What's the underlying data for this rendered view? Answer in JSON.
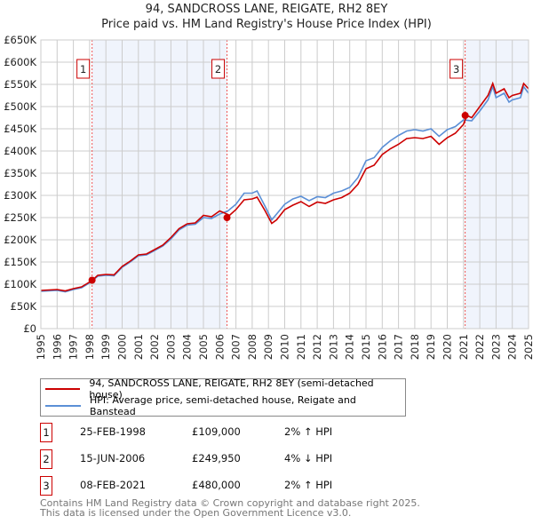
{
  "chart_data": {
    "type": "line",
    "title": "94, SANDCROSS LANE, REIGATE, RH2 8EY",
    "subtitle": "Price paid vs. HM Land Registry's House Price Index (HPI)",
    "xlim": [
      1995,
      2025
    ],
    "ylim": [
      0,
      650000
    ],
    "x_ticks": [
      "1995",
      "1996",
      "1997",
      "1998",
      "1999",
      "2000",
      "2001",
      "2002",
      "2003",
      "2004",
      "2005",
      "2006",
      "2007",
      "2008",
      "2009",
      "2010",
      "2011",
      "2012",
      "2013",
      "2014",
      "2015",
      "2016",
      "2017",
      "2018",
      "2019",
      "2020",
      "2021",
      "2022",
      "2023",
      "2024",
      "2025"
    ],
    "y_ticks": [
      "£0",
      "£50K",
      "£100K",
      "£150K",
      "£200K",
      "£250K",
      "£300K",
      "£350K",
      "£400K",
      "£450K",
      "£500K",
      "£550K",
      "£600K",
      "£650K"
    ],
    "grid": true,
    "series": [
      {
        "name": "94, SANDCROSS LANE, REIGATE, RH2 8EY (semi-detached house)",
        "color": "#cc0000",
        "x": [
          1995,
          1996,
          1996.5,
          1997,
          1997.5,
          1998,
          1998.2,
          1998.5,
          1999,
          1999.5,
          2000,
          2000.5,
          2001,
          2001.5,
          2002,
          2002.5,
          2003,
          2003.5,
          2004,
          2004.5,
          2005,
          2005.5,
          2006,
          2006.45,
          2006.6,
          2007,
          2007.5,
          2008,
          2008.3,
          2008.8,
          2009.2,
          2009.5,
          2010,
          2010.5,
          2011,
          2011.5,
          2012,
          2012.5,
          2013,
          2013.5,
          2014,
          2014.5,
          2015,
          2015.5,
          2016,
          2016.5,
          2017,
          2017.5,
          2018,
          2018.5,
          2019,
          2019.5,
          2020,
          2020.5,
          2021,
          2021.2,
          2021.5,
          2022,
          2022.5,
          2022.8,
          2023,
          2023.5,
          2023.8,
          2024,
          2024.5,
          2024.7,
          2025
        ],
        "y": [
          86,
          88,
          85,
          90,
          94,
          105,
          110,
          120,
          122,
          121,
          140,
          152,
          166,
          168,
          178,
          188,
          205,
          225,
          236,
          238,
          255,
          252,
          265,
          258,
          255,
          268,
          290,
          292,
          296,
          265,
          237,
          245,
          268,
          278,
          286,
          275,
          285,
          282,
          290,
          295,
          305,
          325,
          360,
          368,
          392,
          405,
          415,
          428,
          430,
          428,
          433,
          415,
          430,
          440,
          460,
          480,
          475,
          500,
          525,
          552,
          530,
          540,
          520,
          525,
          530,
          552,
          540
        ]
      },
      {
        "name": "HPI: Average price, semi-detached house, Reigate and Banstead",
        "color": "#5b8fd6",
        "x": [
          1995,
          1996,
          1996.5,
          1997,
          1997.5,
          1998,
          1998.5,
          1999,
          1999.5,
          2000,
          2000.5,
          2001,
          2001.5,
          2002,
          2002.5,
          2003,
          2003.5,
          2004,
          2004.5,
          2005,
          2005.5,
          2006,
          2006.5,
          2007,
          2007.5,
          2008,
          2008.3,
          2008.8,
          2009.2,
          2009.5,
          2010,
          2010.5,
          2011,
          2011.5,
          2012,
          2012.5,
          2013,
          2013.5,
          2014,
          2014.5,
          2015,
          2015.5,
          2016,
          2016.5,
          2017,
          2017.5,
          2018,
          2018.5,
          2019,
          2019.5,
          2020,
          2020.5,
          2021,
          2021.5,
          2022,
          2022.5,
          2022.8,
          2023,
          2023.5,
          2023.8,
          2024,
          2024.5,
          2024.7,
          2025
        ],
        "y": [
          84,
          86,
          83,
          88,
          92,
          103,
          118,
          120,
          119,
          138,
          150,
          164,
          166,
          176,
          186,
          202,
          222,
          233,
          235,
          250,
          248,
          258,
          265,
          280,
          305,
          305,
          310,
          275,
          245,
          258,
          280,
          292,
          298,
          288,
          297,
          295,
          305,
          310,
          318,
          340,
          378,
          385,
          408,
          423,
          435,
          445,
          448,
          445,
          450,
          433,
          448,
          455,
          470,
          468,
          490,
          515,
          545,
          520,
          530,
          510,
          515,
          520,
          545,
          530
        ]
      }
    ],
    "sales": [
      {
        "label": "1",
        "x": 1998.15,
        "y": 109000
      },
      {
        "label": "2",
        "x": 2006.45,
        "y": 249950
      },
      {
        "label": "3",
        "x": 2021.1,
        "y": 480000
      }
    ],
    "legend_placement": "bottom"
  },
  "table": [
    {
      "num": "1",
      "date": "25-FEB-1998",
      "price": "£109,000",
      "hpi": "2% ↑ HPI"
    },
    {
      "num": "2",
      "date": "15-JUN-2006",
      "price": "£249,950",
      "hpi": "4% ↓ HPI"
    },
    {
      "num": "3",
      "date": "08-FEB-2021",
      "price": "£480,000",
      "hpi": "2% ↑ HPI"
    }
  ],
  "footer": {
    "line1": "Contains HM Land Registry data © Crown copyright and database right 2025.",
    "line2": "This data is licensed under the Open Government Licence v3.0."
  }
}
